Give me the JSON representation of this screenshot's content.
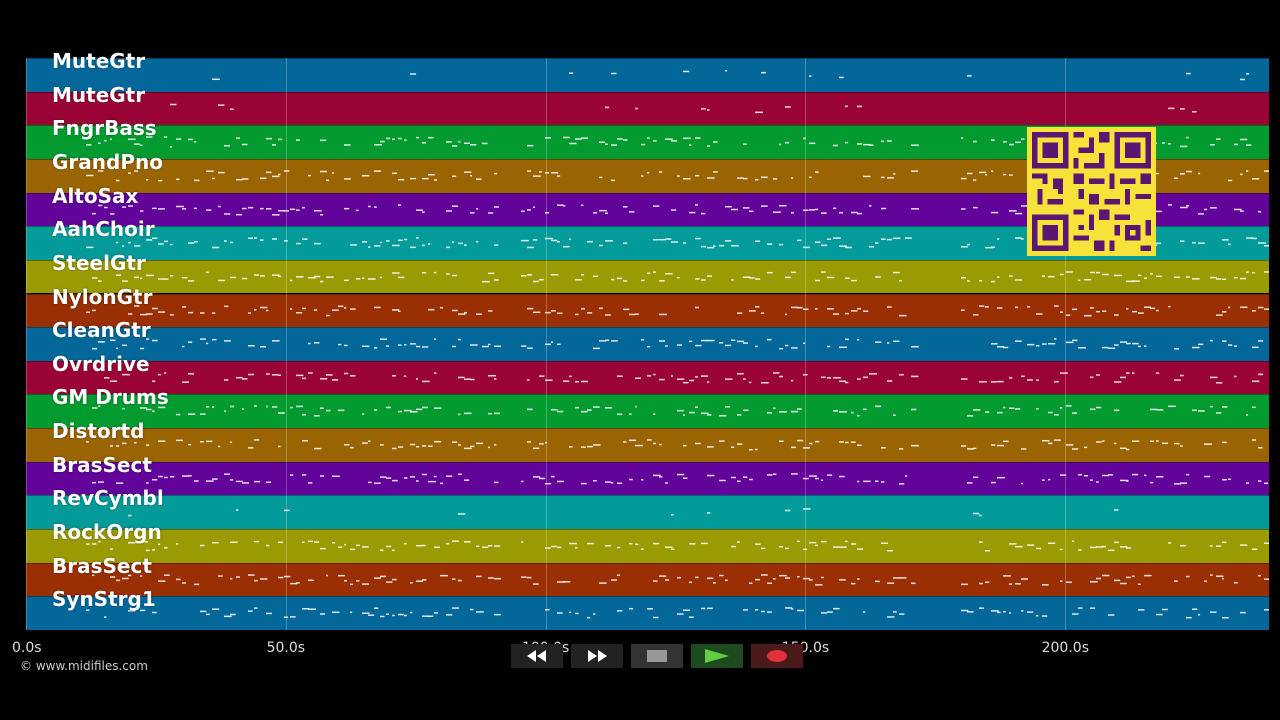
{
  "tracks": [
    {
      "name": "MuteGtr",
      "color": "#03679a"
    },
    {
      "name": "MuteGtr",
      "color": "#9a0335"
    },
    {
      "name": "FngrBass",
      "color": "#039a30"
    },
    {
      "name": "GrandPno",
      "color": "#9a6403"
    },
    {
      "name": "AltoSax",
      "color": "#62039a"
    },
    {
      "name": "AahChoir",
      "color": "#039a9a"
    },
    {
      "name": "SteelGtr",
      "color": "#9a9a03"
    },
    {
      "name": "NylonGtr",
      "color": "#9a2f03"
    },
    {
      "name": "CleanGtr",
      "color": "#03679a"
    },
    {
      "name": "Ovrdrive",
      "color": "#9a0335"
    },
    {
      "name": "GM Drums",
      "color": "#039a30"
    },
    {
      "name": "Distortd",
      "color": "#9a6403"
    },
    {
      "name": "BrasSect",
      "color": "#62039a"
    },
    {
      "name": "RevCymbl",
      "color": "#039a9a"
    },
    {
      "name": "RockOrgn",
      "color": "#9a9a03"
    },
    {
      "name": "BrasSect",
      "color": "#9a2f03"
    },
    {
      "name": "SynStrg1",
      "color": "#03679a"
    }
  ],
  "time_axis": {
    "ticks": [
      "0.0s",
      "50.0s",
      "100.0s",
      "150.0s",
      "200.0s"
    ],
    "tick_seconds": [
      0,
      50,
      100,
      150,
      200
    ],
    "max_seconds": 239.2
  },
  "copyright": "© www.midifiles.com",
  "transport": {
    "rewind_icon": "rewind-icon",
    "fast_forward_icon": "fast-forward-icon",
    "stop_icon": "stop-icon",
    "play_icon": "play-icon",
    "record_icon": "record-icon"
  },
  "qr_code": "qr-code-icon"
}
